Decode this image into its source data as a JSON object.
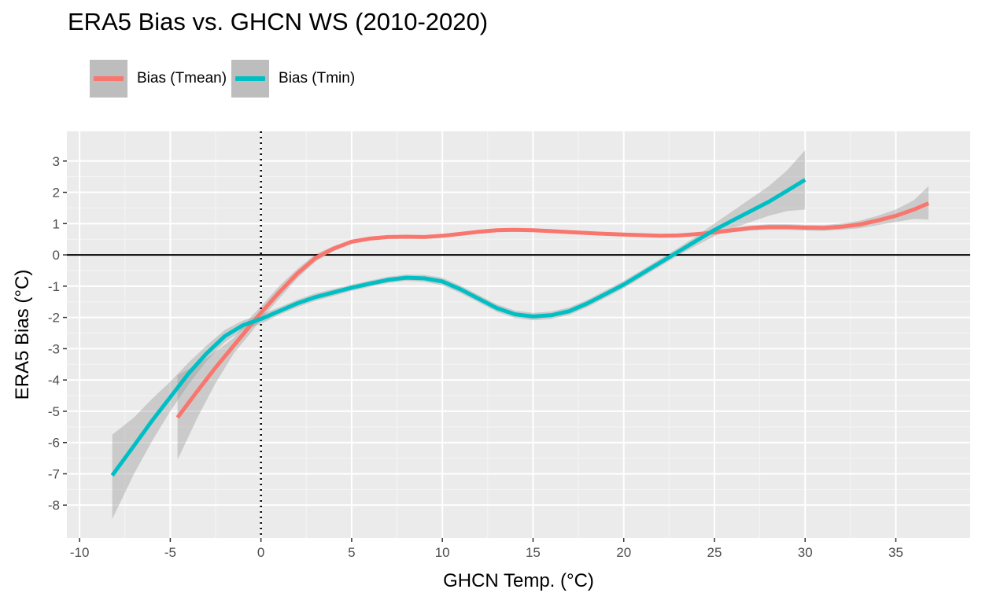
{
  "chart_data": {
    "type": "line",
    "title": "ERA5 Bias vs. GHCN WS (2010-2020)",
    "xlabel": "GHCN Temp. (°C)",
    "ylabel": "ERA5 Bias (°C)",
    "xlim": [
      -10.7,
      39.1
    ],
    "ylim": [
      -9.05,
      3.95
    ],
    "x_ticks": [
      -10,
      -5,
      0,
      5,
      10,
      15,
      20,
      25,
      30,
      35
    ],
    "x_tick_labels": [
      "-10",
      "-5",
      "0",
      "5",
      "10",
      "15",
      "20",
      "25",
      "30",
      "35"
    ],
    "y_ticks": [
      -8,
      -7,
      -6,
      -5,
      -4,
      -3,
      -2,
      -1,
      0,
      1,
      2,
      3
    ],
    "y_tick_labels": [
      "-8",
      "-7",
      "-6",
      "-5",
      "-4",
      "-3",
      "-2",
      "-1",
      "0",
      "1",
      "2",
      "3"
    ],
    "hline": 0,
    "vline": 0,
    "grid": true,
    "background": "#ebebeb",
    "legend_position": "top-left",
    "series": [
      {
        "name": "Bias (Tmean)",
        "color": "#f8766d",
        "x": [
          -4.6,
          -3.5,
          -2.5,
          -1.5,
          -0.5,
          0,
          1,
          2,
          3,
          4,
          5,
          6,
          7,
          8,
          9,
          10,
          11,
          12,
          13,
          14,
          15,
          16,
          17,
          18,
          19,
          20,
          21,
          22,
          23,
          24,
          25,
          26,
          27,
          28,
          29,
          30,
          31,
          32,
          33,
          34,
          35,
          36,
          36.8
        ],
        "y": [
          -5.2,
          -4.35,
          -3.6,
          -2.9,
          -2.2,
          -1.85,
          -1.2,
          -0.6,
          -0.1,
          0.2,
          0.42,
          0.52,
          0.57,
          0.58,
          0.57,
          0.61,
          0.67,
          0.74,
          0.79,
          0.8,
          0.79,
          0.76,
          0.73,
          0.7,
          0.67,
          0.65,
          0.63,
          0.61,
          0.62,
          0.66,
          0.72,
          0.79,
          0.86,
          0.89,
          0.89,
          0.87,
          0.86,
          0.9,
          0.97,
          1.1,
          1.25,
          1.45,
          1.65
        ],
        "ci_lower": [
          -6.55,
          -5.2,
          -4.1,
          -3.15,
          -2.45,
          -2.05,
          -1.4,
          -0.75,
          -0.22,
          0.12,
          0.36,
          0.47,
          0.53,
          0.54,
          0.53,
          0.57,
          0.63,
          0.7,
          0.75,
          0.76,
          0.75,
          0.72,
          0.69,
          0.66,
          0.63,
          0.61,
          0.59,
          0.57,
          0.57,
          0.61,
          0.66,
          0.72,
          0.78,
          0.8,
          0.8,
          0.78,
          0.77,
          0.8,
          0.85,
          0.95,
          1.05,
          1.15,
          1.13
        ],
        "ci_upper": [
          -3.85,
          -3.5,
          -3.1,
          -2.65,
          -1.95,
          -1.65,
          -1.0,
          -0.45,
          0.02,
          0.28,
          0.48,
          0.57,
          0.61,
          0.62,
          0.61,
          0.65,
          0.71,
          0.78,
          0.83,
          0.84,
          0.83,
          0.8,
          0.77,
          0.74,
          0.71,
          0.69,
          0.67,
          0.65,
          0.67,
          0.71,
          0.78,
          0.86,
          0.94,
          0.98,
          0.98,
          0.96,
          0.95,
          1.0,
          1.09,
          1.25,
          1.45,
          1.75,
          2.2
        ]
      },
      {
        "name": "Bias (Tmin)",
        "color": "#00bfc4",
        "x": [
          -8.2,
          -7,
          -6,
          -5,
          -4,
          -3,
          -2,
          -1,
          0,
          1,
          2,
          3,
          4,
          5,
          6,
          7,
          8,
          9,
          10,
          11,
          12,
          13,
          14,
          15,
          16,
          17,
          18,
          19,
          20,
          21,
          22,
          23,
          24,
          25,
          26,
          27,
          28,
          29,
          30
        ],
        "y": [
          -7.05,
          -6.1,
          -5.3,
          -4.55,
          -3.8,
          -3.15,
          -2.6,
          -2.25,
          -2.05,
          -1.8,
          -1.55,
          -1.35,
          -1.2,
          -1.05,
          -0.92,
          -0.8,
          -0.73,
          -0.75,
          -0.85,
          -1.1,
          -1.4,
          -1.7,
          -1.9,
          -1.97,
          -1.93,
          -1.8,
          -1.55,
          -1.25,
          -0.95,
          -0.6,
          -0.25,
          0.1,
          0.45,
          0.8,
          1.1,
          1.4,
          1.7,
          2.05,
          2.4
        ],
        "ci_lower": [
          -8.45,
          -7.0,
          -5.95,
          -5.0,
          -4.15,
          -3.4,
          -2.8,
          -2.4,
          -2.2,
          -1.92,
          -1.67,
          -1.47,
          -1.31,
          -1.15,
          -1.02,
          -0.9,
          -0.83,
          -0.86,
          -0.97,
          -1.22,
          -1.52,
          -1.82,
          -2.02,
          -2.09,
          -2.05,
          -1.92,
          -1.67,
          -1.37,
          -1.07,
          -0.72,
          -0.37,
          -0.02,
          0.3,
          0.6,
          0.85,
          1.05,
          1.25,
          1.4,
          1.45
        ],
        "ci_upper": [
          -5.75,
          -5.2,
          -4.6,
          -4.05,
          -3.45,
          -2.9,
          -2.4,
          -2.1,
          -1.9,
          -1.68,
          -1.43,
          -1.23,
          -1.09,
          -0.95,
          -0.82,
          -0.7,
          -0.63,
          -0.64,
          -0.73,
          -0.98,
          -1.28,
          -1.58,
          -1.78,
          -1.85,
          -1.81,
          -1.68,
          -1.43,
          -1.13,
          -0.83,
          -0.48,
          -0.13,
          0.22,
          0.6,
          1.0,
          1.4,
          1.8,
          2.2,
          2.7,
          3.35
        ]
      }
    ]
  }
}
